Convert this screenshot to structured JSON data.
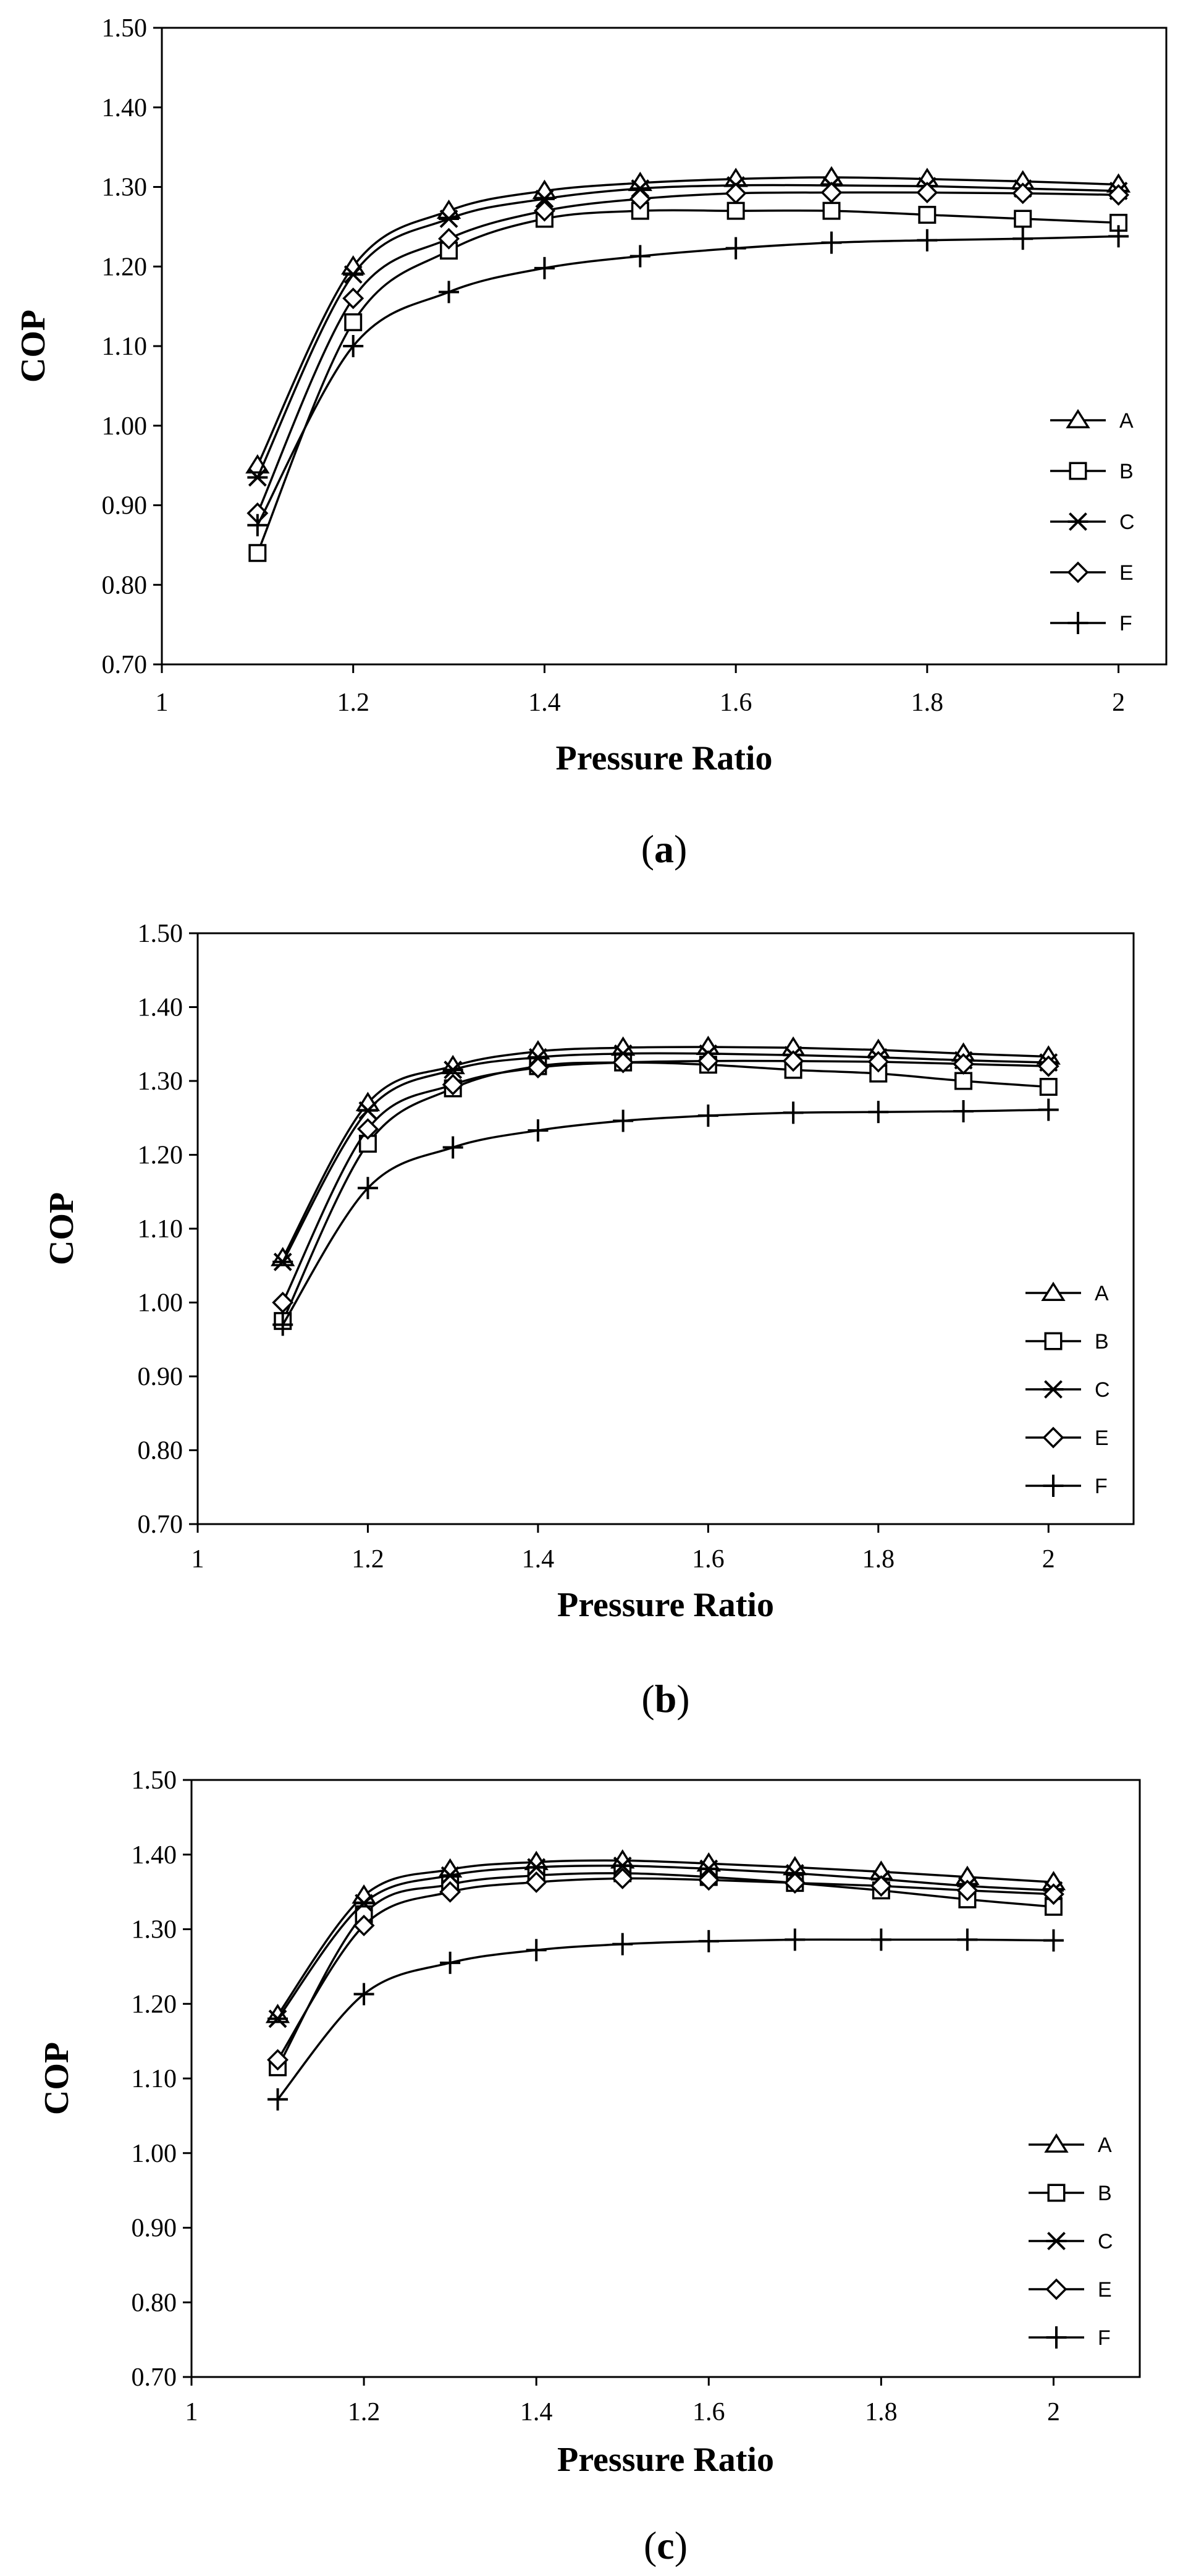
{
  "chart_data": [
    {
      "type": "line",
      "caption_letter": "a",
      "xlabel": "Pressure Ratio",
      "ylabel": "COP",
      "xlim": [
        1,
        2.05
      ],
      "ylim": [
        0.7,
        1.5
      ],
      "xticks": [
        "1",
        "1.2",
        "1.4",
        "1.6",
        "1.8",
        "2"
      ],
      "yticks": [
        "0.70",
        "0.80",
        "0.90",
        "1.00",
        "1.10",
        "1.20",
        "1.30",
        "1.40",
        "1.50"
      ],
      "x": [
        1.1,
        1.2,
        1.3,
        1.4,
        1.5,
        1.6,
        1.7,
        1.8,
        1.9,
        2.0
      ],
      "legend_position": "right",
      "series": [
        {
          "name": "A",
          "marker": "triangle",
          "values": [
            0.95,
            1.2,
            1.27,
            1.295,
            1.305,
            1.31,
            1.312,
            1.31,
            1.307,
            1.303
          ]
        },
        {
          "name": "B",
          "marker": "square",
          "values": [
            0.84,
            1.13,
            1.22,
            1.26,
            1.27,
            1.27,
            1.27,
            1.265,
            1.26,
            1.255
          ]
        },
        {
          "name": "C",
          "marker": "star",
          "values": [
            0.935,
            1.19,
            1.26,
            1.285,
            1.298,
            1.302,
            1.302,
            1.301,
            1.298,
            1.295
          ]
        },
        {
          "name": "E",
          "marker": "diamond",
          "values": [
            0.89,
            1.16,
            1.235,
            1.27,
            1.285,
            1.292,
            1.293,
            1.293,
            1.292,
            1.29
          ]
        },
        {
          "name": "F",
          "marker": "plus",
          "values": [
            0.875,
            1.1,
            1.168,
            1.198,
            1.213,
            1.223,
            1.23,
            1.233,
            1.235,
            1.238
          ]
        }
      ]
    },
    {
      "type": "line",
      "caption_letter": "b",
      "xlabel": "Pressure Ratio",
      "ylabel": "COP",
      "xlim": [
        1,
        2.1
      ],
      "ylim": [
        0.7,
        1.5
      ],
      "xticks": [
        "1",
        "1.2",
        "1.4",
        "1.6",
        "1.8",
        "2"
      ],
      "yticks": [
        "0.70",
        "0.80",
        "0.90",
        "1.00",
        "1.10",
        "1.20",
        "1.30",
        "1.40",
        "1.50"
      ],
      "x": [
        1.1,
        1.2,
        1.3,
        1.4,
        1.5,
        1.6,
        1.7,
        1.8,
        1.9,
        2.0
      ],
      "legend_position": "right",
      "series": [
        {
          "name": "A",
          "marker": "triangle",
          "values": [
            1.06,
            1.27,
            1.32,
            1.34,
            1.345,
            1.346,
            1.345,
            1.342,
            1.337,
            1.333
          ]
        },
        {
          "name": "B",
          "marker": "square",
          "values": [
            0.975,
            1.215,
            1.29,
            1.32,
            1.325,
            1.322,
            1.315,
            1.31,
            1.3,
            1.292
          ]
        },
        {
          "name": "C",
          "marker": "star",
          "values": [
            1.055,
            1.26,
            1.315,
            1.332,
            1.337,
            1.337,
            1.335,
            1.332,
            1.328,
            1.325
          ]
        },
        {
          "name": "E",
          "marker": "diamond",
          "values": [
            1.0,
            1.235,
            1.295,
            1.318,
            1.325,
            1.327,
            1.327,
            1.326,
            1.323,
            1.32
          ]
        },
        {
          "name": "F",
          "marker": "plus",
          "values": [
            0.97,
            1.155,
            1.21,
            1.233,
            1.246,
            1.253,
            1.257,
            1.258,
            1.259,
            1.261
          ]
        }
      ]
    },
    {
      "type": "line",
      "caption_letter": "c",
      "xlabel": "Pressure Ratio",
      "ylabel": "COP",
      "xlim": [
        1,
        2.1
      ],
      "ylim": [
        0.7,
        1.5
      ],
      "xticks": [
        "1",
        "1.2",
        "1.4",
        "1.6",
        "1.8",
        "2"
      ],
      "yticks": [
        "0.70",
        "0.80",
        "0.90",
        "1.00",
        "1.10",
        "1.20",
        "1.30",
        "1.40",
        "1.50"
      ],
      "x": [
        1.1,
        1.2,
        1.3,
        1.4,
        1.5,
        1.6,
        1.7,
        1.8,
        1.9,
        2.0
      ],
      "legend_position": "right",
      "series": [
        {
          "name": "A",
          "marker": "triangle",
          "values": [
            1.185,
            1.345,
            1.38,
            1.39,
            1.392,
            1.388,
            1.383,
            1.377,
            1.37,
            1.363
          ]
        },
        {
          "name": "B",
          "marker": "square",
          "values": [
            1.115,
            1.32,
            1.36,
            1.372,
            1.375,
            1.37,
            1.362,
            1.352,
            1.34,
            1.33
          ]
        },
        {
          "name": "C",
          "marker": "star",
          "values": [
            1.18,
            1.335,
            1.372,
            1.383,
            1.385,
            1.381,
            1.375,
            1.367,
            1.358,
            1.352
          ]
        },
        {
          "name": "E",
          "marker": "diamond",
          "values": [
            1.125,
            1.305,
            1.35,
            1.363,
            1.368,
            1.366,
            1.362,
            1.358,
            1.352,
            1.347
          ]
        },
        {
          "name": "F",
          "marker": "plus",
          "values": [
            1.072,
            1.213,
            1.255,
            1.272,
            1.28,
            1.284,
            1.286,
            1.286,
            1.286,
            1.285
          ]
        }
      ]
    }
  ]
}
